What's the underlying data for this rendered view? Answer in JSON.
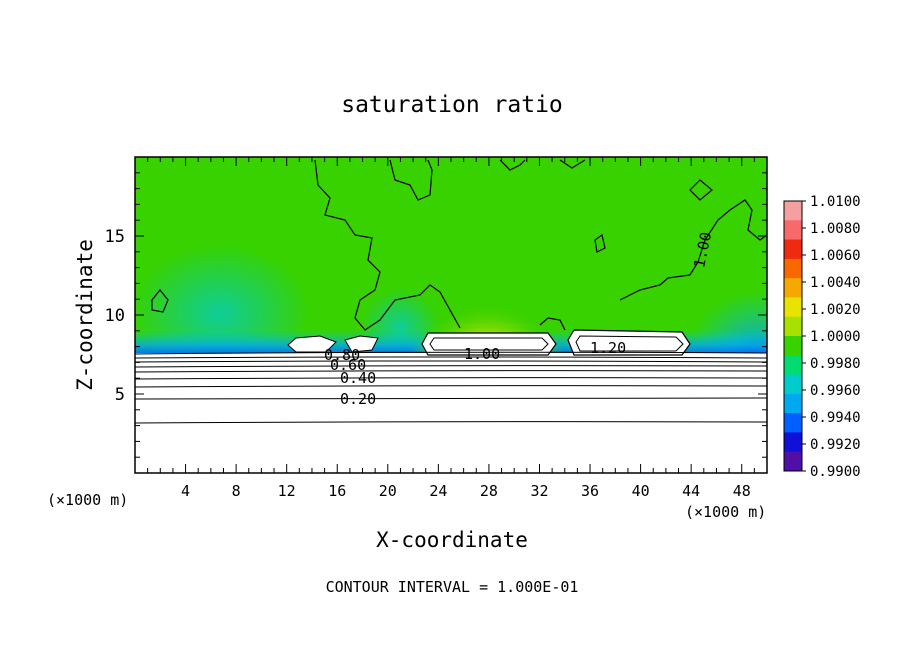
{
  "chart_data": {
    "type": "heatmap",
    "title": "saturation ratio",
    "xlabel": "X-coordinate",
    "ylabel": "Z-coordinate",
    "x_unit": "(×1000 m)",
    "z_unit": "(×1000 m)",
    "xlim": [
      0,
      50
    ],
    "ylim": [
      0,
      20
    ],
    "x_ticks": [
      "4",
      "8",
      "12",
      "16",
      "20",
      "24",
      "28",
      "32",
      "36",
      "40",
      "44",
      "48"
    ],
    "y_ticks": [
      "5",
      "10",
      "15"
    ],
    "footer": "CONTOUR INTERVAL = 1.000E-01",
    "colorbar": {
      "levels": [
        "1.0100",
        "1.0080",
        "1.0060",
        "1.0040",
        "1.0020",
        "1.0000",
        "0.9980",
        "0.9960",
        "0.9940",
        "0.9920",
        "0.9900"
      ],
      "colors": [
        "#f4a0a0",
        "#f86a6a",
        "#ee2a10",
        "#f86800",
        "#f5a800",
        "#e8e400",
        "#a8e000",
        "#38d200",
        "#00dc70",
        "#00cccc",
        "#00a8f0",
        "#0060ff",
        "#1010d8",
        "#5010a8"
      ]
    },
    "contour_labels": [
      "1.00",
      "1.00",
      "1.20",
      "0.20",
      "0.40",
      "0.60",
      "0.80"
    ],
    "regions": {
      "background_value": 1.0,
      "cloud_top_max_value": 1.01,
      "low_level_min_value": 0.99
    }
  }
}
